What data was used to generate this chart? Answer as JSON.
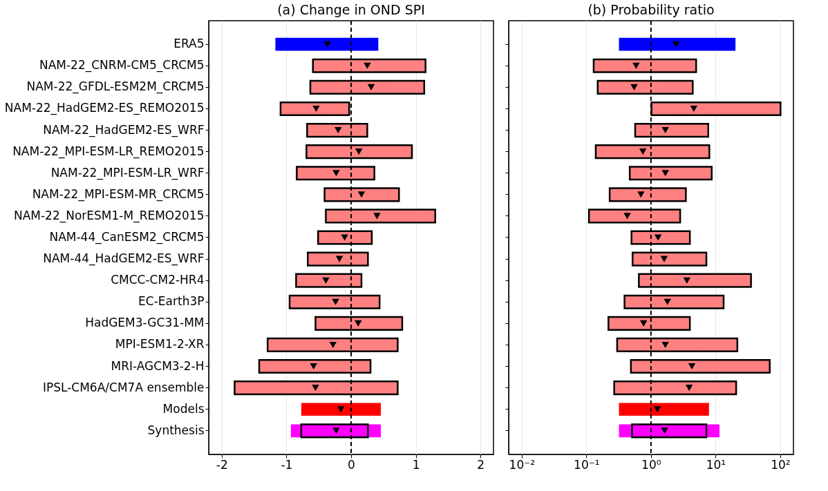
{
  "chart_data": [
    {
      "type": "bar",
      "orientation": "horizontal",
      "title": "(a) Change in OND SPI",
      "categories": [
        "ERA5",
        "NAM-22_CNRM-CM5_CRCM5",
        "NAM-22_GFDL-ESM2M_CRCM5",
        "NAM-22_HadGEM2-ES_REMO2015",
        "NAM-22_HadGEM2-ES_WRF",
        "NAM-22_MPI-ESM-LR_REMO2015",
        "NAM-22_MPI-ESM-LR_WRF",
        "NAM-22_MPI-ESM-MR_CRCM5",
        "NAM-22_NorESM1-M_REMO2015",
        "NAM-44_CanESM2_CRCM5",
        "NAM-44_HadGEM2-ES_WRF",
        "CMCC-CM2-HR4",
        "EC-Earth3P",
        "HadGEM3-GC31-MM",
        "MPI-ESM1-2-XR",
        "MRI-AGCM3-2-H",
        "IPSL-CM6A/CM7A ensemble",
        "Models",
        "Synthesis"
      ],
      "series": [
        {
          "type": "bar",
          "colors": [
            "#0000ff",
            null,
            null,
            null,
            null,
            null,
            null,
            null,
            null,
            null,
            null,
            null,
            null,
            null,
            null,
            null,
            null,
            "#ff0000",
            "#ff00ff"
          ],
          "base": [
            -1.17,
            null,
            null,
            null,
            null,
            null,
            null,
            null,
            null,
            null,
            null,
            null,
            null,
            null,
            null,
            null,
            null,
            -0.77,
            -0.93
          ],
          "values": [
            1.59,
            null,
            null,
            null,
            null,
            null,
            null,
            null,
            null,
            null,
            null,
            null,
            null,
            null,
            null,
            null,
            null,
            1.23,
            1.39
          ]
        },
        {
          "type": "bar",
          "line_style": "solid",
          "colors": [
            null,
            "#ff8080",
            "#ff8080",
            "#ff8080",
            "#ff8080",
            "#ff8080",
            "#ff8080",
            "#ff8080",
            "#ff8080",
            "#ff8080",
            "#ff8080",
            "#ff8080",
            "#ff8080",
            "#ff8080",
            "#ff8080",
            "#ff8080",
            "#ff8080",
            null,
            "#ff00ff"
          ],
          "base": [
            null,
            -0.59,
            -0.63,
            -1.09,
            -0.68,
            -0.69,
            -0.84,
            -0.41,
            -0.39,
            -0.51,
            -0.67,
            -0.85,
            -0.95,
            -0.55,
            -1.29,
            -1.42,
            -1.8,
            null,
            -0.77
          ],
          "values": [
            null,
            1.74,
            1.76,
            1.06,
            0.93,
            1.63,
            1.2,
            1.15,
            1.69,
            0.83,
            0.93,
            1.01,
            1.39,
            1.34,
            2.01,
            1.72,
            2.52,
            null,
            1.03
          ]
        },
        {
          "type": "scatter",
          "marker": "triangle",
          "color": "#000000",
          "values": [
            -0.37,
            0.25,
            0.31,
            -0.54,
            -0.2,
            0.12,
            -0.23,
            0.16,
            0.4,
            -0.1,
            -0.18,
            -0.39,
            -0.24,
            0.11,
            -0.28,
            -0.58,
            -0.55,
            -0.16,
            -0.23
          ]
        }
      ],
      "xlim": [
        -2.2,
        2.2
      ],
      "xticks": [
        -2,
        -1,
        0,
        1,
        2
      ],
      "grid": "x",
      "ref_lines": [
        {
          "axis": "x",
          "value": 0,
          "color": "#000000",
          "line_style": "dashed"
        }
      ]
    },
    {
      "type": "bar",
      "orientation": "horizontal",
      "title": "(b) Probability ratio",
      "log": "x",
      "tick_labels": "x",
      "categories": [
        "ERA5",
        "NAM-22_CNRM-CM5_CRCM5",
        "NAM-22_GFDL-ESM2M_CRCM5",
        "NAM-22_HadGEM2-ES_REMO2015",
        "NAM-22_HadGEM2-ES_WRF",
        "NAM-22_MPI-ESM-LR_REMO2015",
        "NAM-22_MPI-ESM-LR_WRF",
        "NAM-22_MPI-ESM-MR_CRCM5",
        "NAM-22_NorESM1-M_REMO2015",
        "NAM-44_CanESM2_CRCM5",
        "NAM-44_HadGEM2-ES_WRF",
        "CMCC-CM2-HR4",
        "EC-Earth3P",
        "HadGEM3-GC31-MM",
        "MPI-ESM1-2-XR",
        "MRI-AGCM3-2-H",
        "IPSL-CM6A/CM7A ensemble",
        "Models",
        "Synthesis"
      ],
      "series": [
        {
          "type": "bar",
          "colors": [
            "#0000ff",
            null,
            null,
            null,
            null,
            null,
            null,
            null,
            null,
            null,
            null,
            null,
            null,
            null,
            null,
            null,
            null,
            "#ff0000",
            "#ff00ff"
          ],
          "base": [
            0.32,
            null,
            null,
            null,
            null,
            null,
            null,
            null,
            null,
            null,
            null,
            null,
            null,
            null,
            null,
            null,
            null,
            0.32,
            0.32
          ],
          "values": [
            19.98,
            null,
            null,
            null,
            null,
            null,
            null,
            null,
            null,
            null,
            null,
            null,
            null,
            null,
            null,
            null,
            null,
            7.58,
            11.18
          ]
        },
        {
          "type": "bar",
          "line_style": "solid",
          "colors": [
            null,
            "#ff8080",
            "#ff8080",
            "#ff8080",
            "#ff8080",
            "#ff8080",
            "#ff8080",
            "#ff8080",
            "#ff8080",
            "#ff8080",
            "#ff8080",
            "#ff8080",
            "#ff8080",
            "#ff8080",
            "#ff8080",
            "#ff8080",
            "#ff8080",
            null,
            "#ff00ff"
          ],
          "base": [
            null,
            0.13,
            0.15,
            1.02,
            0.57,
            0.14,
            0.47,
            0.23,
            0.11,
            0.5,
            0.52,
            0.65,
            0.39,
            0.22,
            0.3,
            0.49,
            0.27,
            null,
            0.51
          ],
          "values": [
            null,
            4.87,
            4.28,
            99.98,
            7.13,
            7.86,
            8.23,
            3.24,
            2.72,
            3.5,
            6.68,
            34.65,
            12.91,
            3.78,
            21.4,
            68.31,
            20.53,
            null,
            6.69
          ]
        },
        {
          "type": "scatter",
          "marker": "triangle",
          "color": "#000000",
          "values": [
            2.45,
            0.59,
            0.55,
            4.6,
            1.67,
            0.75,
            1.67,
            0.7,
            0.43,
            1.29,
            1.6,
            3.6,
            1.8,
            0.77,
            1.67,
            4.3,
            3.9,
            1.26,
            1.63
          ]
        }
      ],
      "xlim": [
        0.0063,
        160
      ],
      "xticks": [
        {
          "value": 0.01,
          "label": "10⁻²"
        },
        {
          "value": 0.1,
          "label": "10⁻¹"
        },
        {
          "value": 1,
          "label": "10⁰"
        },
        {
          "value": 10,
          "label": "10¹"
        },
        {
          "value": 100,
          "label": "10²"
        }
      ],
      "grid": "x",
      "ref_lines": [
        {
          "axis": "x",
          "value": 1,
          "color": "#000000",
          "line_style": "dashed"
        }
      ]
    }
  ]
}
